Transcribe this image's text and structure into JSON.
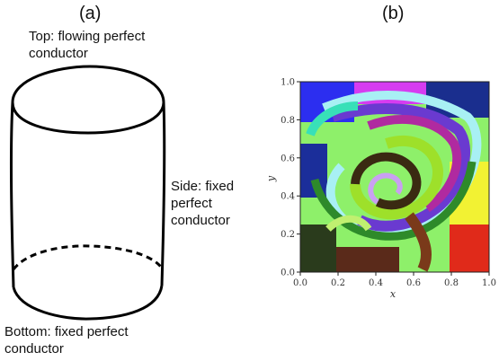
{
  "panel_a": {
    "label": "(a)",
    "top_caption": "Top: flowing perfect\nconductor",
    "side_caption": "Side: fixed\nperfect\nconductor",
    "bottom_caption": "Bottom: fixed perfect\nconductor"
  },
  "panel_b": {
    "label": "(b)",
    "xlabel": "x",
    "ylabel": "y",
    "xticks": [
      "0.0",
      "0.2",
      "0.4",
      "0.6",
      "0.8",
      "1.0"
    ],
    "yticks": [
      "0.0",
      "0.2",
      "0.4",
      "0.6",
      "0.8",
      "1.0"
    ],
    "xlim": [
      0,
      1
    ],
    "ylim": [
      0,
      1
    ]
  }
}
